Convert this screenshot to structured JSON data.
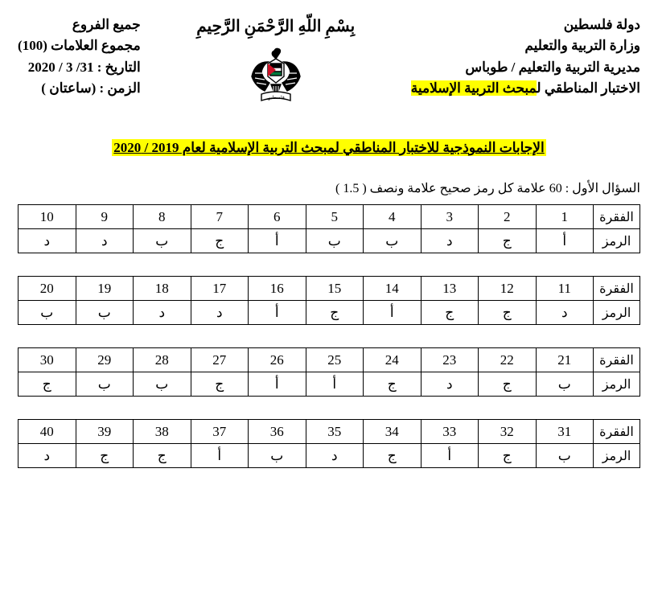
{
  "header": {
    "right": {
      "l1": "دولة فلسطين",
      "l2": "وزارة التربية والتعليم",
      "l3": "مديرية التربية والتعليم  / طوباس",
      "l4a": "الاختبار المناطقي ل",
      "l4b": "مبحث التربية الإسلامية"
    },
    "center": {
      "bism": "بِسْمِ اللّهِ الرَّحْمَنِ الرَّحِيمِ"
    },
    "left": {
      "l1": "جميع الفروع",
      "l2": "مجموع العلامات (100)",
      "l3": "التاريخ : 31/ 3 / 2020",
      "l4": "الزمن : (ساعتان )"
    }
  },
  "title": "الإجابات النموذجية للاختبار المناطقي لمبحث التربية الإسلامية لعام 2019 / 2020",
  "q1_intro": "السؤال الأول : 60 علامة كل رمز صحيح علامة ونصف (  1.5 )",
  "labels": {
    "item": "الفقرة",
    "symbol": "الرمز"
  },
  "tables": [
    {
      "nums": [
        "10",
        "9",
        "8",
        "7",
        "6",
        "5",
        "4",
        "3",
        "2",
        "1"
      ],
      "ans": [
        "د",
        "د",
        "ب",
        "ج",
        "أ",
        "ب",
        "ب",
        "د",
        "ج",
        "أ"
      ]
    },
    {
      "nums": [
        "20",
        "19",
        "18",
        "17",
        "16",
        "15",
        "14",
        "13",
        "12",
        "11"
      ],
      "ans": [
        "ب",
        "ب",
        "د",
        "د",
        "أ",
        "ج",
        "أ",
        "ج",
        "ج",
        "د"
      ]
    },
    {
      "nums": [
        "30",
        "29",
        "28",
        "27",
        "26",
        "25",
        "24",
        "23",
        "22",
        "21"
      ],
      "ans": [
        "ج",
        "ب",
        "ب",
        "ج",
        "أ",
        "أ",
        "ج",
        "د",
        "ج",
        "ب"
      ]
    },
    {
      "nums": [
        "40",
        "39",
        "38",
        "37",
        "36",
        "35",
        "34",
        "33",
        "32",
        "31"
      ],
      "ans": [
        "د",
        "ج",
        "ج",
        "أ",
        "ب",
        "د",
        "ج",
        "أ",
        "ج",
        "ب"
      ]
    }
  ]
}
